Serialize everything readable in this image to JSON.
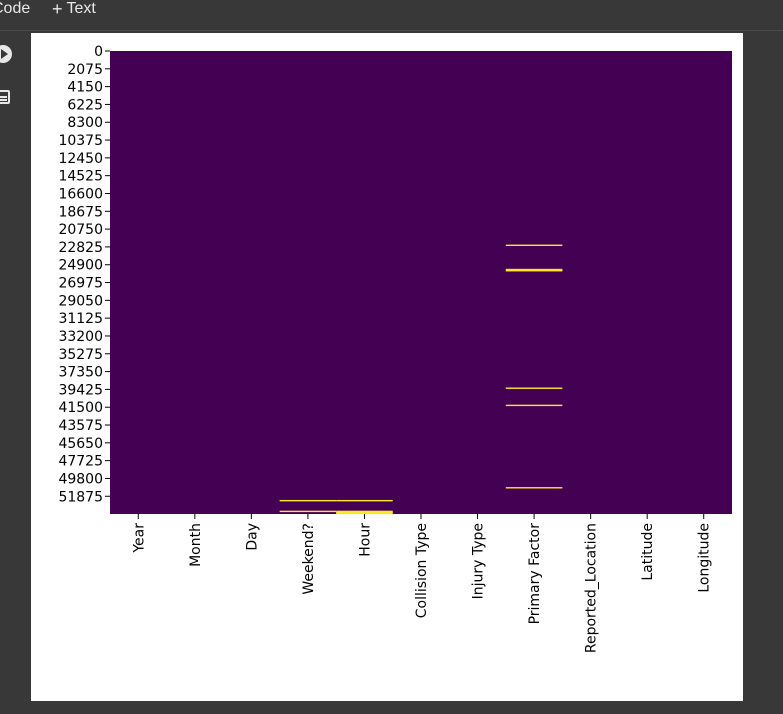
{
  "toolbar": {
    "code_label": "Code",
    "text_label": "Text",
    "plus_icon": "plus-icon"
  },
  "gutter": {
    "run_icon": "play-circle-icon",
    "output_icon": "output-toggle-icon"
  },
  "chart_data": {
    "type": "heatmap",
    "title": "",
    "xlabel": "",
    "ylabel": "",
    "colormap": "viridis",
    "colorbar": false,
    "cbar": false,
    "x_categories": [
      "Year",
      "Month",
      "Day",
      "Weekend?",
      "Hour",
      "Collision Type",
      "Injury Type",
      "Primary Factor",
      "Reported_Location",
      "Latitude",
      "Longitude"
    ],
    "y_tick_labels": [
      "0",
      "2075",
      "4150",
      "6225",
      "8300",
      "10375",
      "12450",
      "14525",
      "16600",
      "18675",
      "20750",
      "22825",
      "24900",
      "26975",
      "29050",
      "31125",
      "33200",
      "35275",
      "37350",
      "39425",
      "41500",
      "43575",
      "45650",
      "47725",
      "49800",
      "51875"
    ],
    "y_range": [
      0,
      53942
    ],
    "background_value": "not missing",
    "missing_color": "#fde725",
    "present_color": "#440154",
    "missing_rows": [
      {
        "column": "Primary Factor",
        "rows": [
          22650,
          25470,
          25600,
          39300,
          41300,
          50900
        ]
      },
      {
        "column": "Weekend?",
        "rows": [
          52400,
          53650
        ]
      },
      {
        "column": "Hour",
        "rows": [
          52400,
          53650,
          53760
        ]
      }
    ]
  }
}
